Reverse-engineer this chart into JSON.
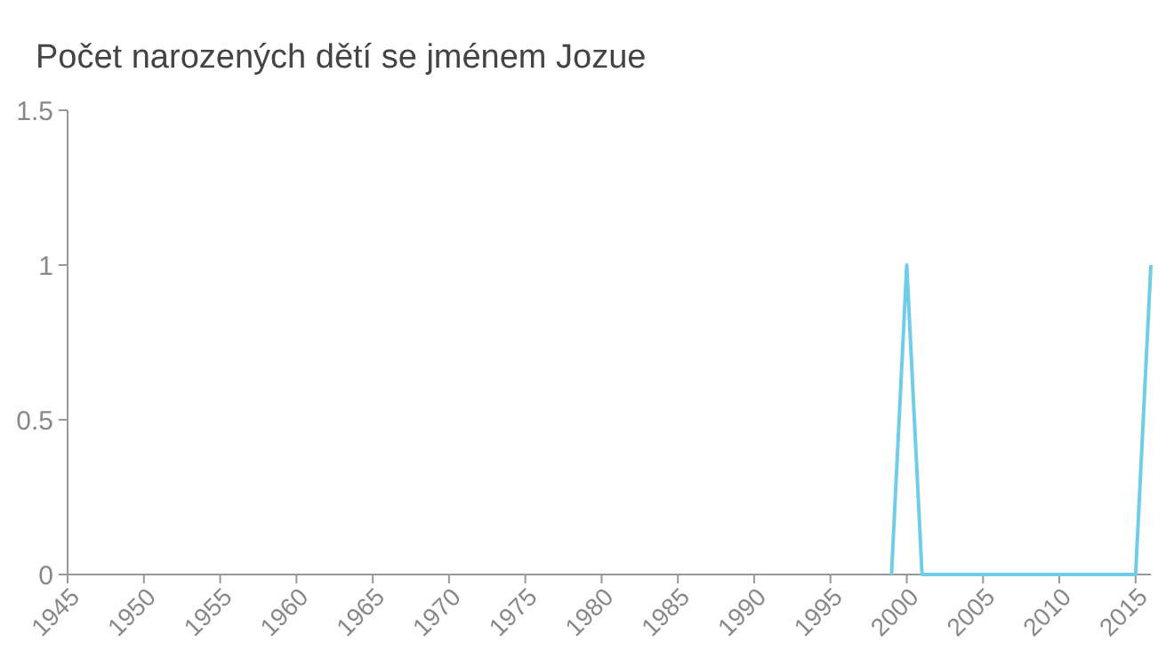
{
  "chart_data": {
    "type": "line",
    "title": "Počet narozených dětí se jménem Jozue",
    "x": [
      1999,
      2000,
      2001,
      2002,
      2003,
      2004,
      2005,
      2006,
      2007,
      2008,
      2009,
      2010,
      2011,
      2012,
      2013,
      2014,
      2015,
      2016
    ],
    "series": [
      {
        "color": "#70cdea",
        "values": [
          0,
          1,
          0,
          0,
          0,
          0,
          0,
          0,
          0,
          0,
          0,
          0,
          0,
          0,
          0,
          0,
          0,
          1
        ]
      }
    ],
    "xlim": [
      1945,
      2016
    ],
    "xticks": [
      1945,
      1950,
      1955,
      1960,
      1965,
      1970,
      1975,
      1980,
      1985,
      1990,
      1995,
      2000,
      2005,
      2010,
      2015
    ],
    "ylim": [
      0,
      1.5
    ],
    "yticks": [
      0,
      0.5,
      1,
      1.5
    ],
    "marker": "none",
    "line_style": "solid"
  }
}
